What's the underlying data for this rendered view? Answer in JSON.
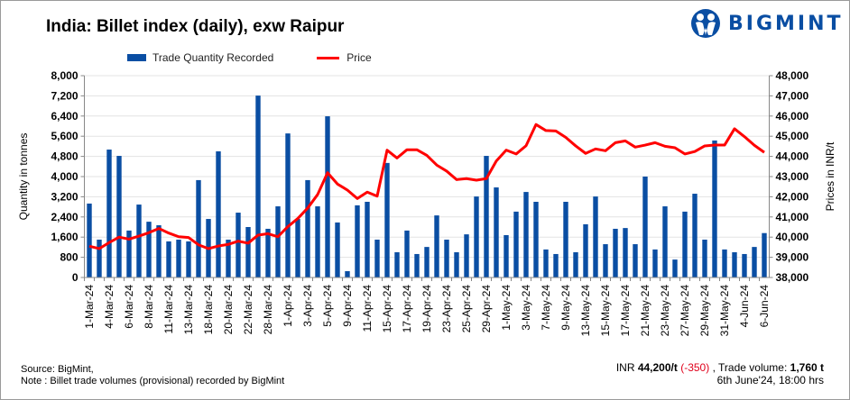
{
  "header": {
    "title": "India: Billet index (daily), exw Raipur",
    "logo_text": "BIGMINT"
  },
  "colors": {
    "bar": "#0a4ea3",
    "line": "#ff0000",
    "change_negative": "#e0001b",
    "brand": "#0a4ea3"
  },
  "chart_data": {
    "type": "bar+line",
    "title": "India: Billet index (daily), exw Raipur",
    "ylabel_left": "Quantity in tonnes",
    "ylabel_right": "Prices in INR/t",
    "ylim_left": [
      0,
      8000
    ],
    "ylim_right": [
      38000,
      48000
    ],
    "yticks_left": [
      "0",
      "800",
      "1,600",
      "2,400",
      "3,200",
      "4,000",
      "4,800",
      "5,600",
      "6,400",
      "7,200",
      "8,000"
    ],
    "yticks_right": [
      "38,000",
      "39,000",
      "40,000",
      "41,000",
      "42,000",
      "43,000",
      "44,000",
      "45,000",
      "46,000",
      "47,000",
      "48,000"
    ],
    "grid": "horizontal",
    "legend_placement": "top",
    "categories": [
      "1-Mar-24",
      "",
      "4-Mar-24",
      "",
      "6-Mar-24",
      "",
      "8-Mar-24",
      "",
      "11-Mar-24",
      "",
      "13-Mar-24",
      "",
      "18-Mar-24",
      "",
      "20-Mar-24",
      "",
      "22-Mar-24",
      "",
      "28-Mar-24",
      "",
      "1-Apr-24",
      "",
      "3-Apr-24",
      "",
      "5-Apr-24",
      "",
      "9-Apr-24",
      "",
      "11-Apr-24",
      "",
      "15-Apr-24",
      "",
      "17-Apr-24",
      "",
      "19-Apr-24",
      "",
      "23-Apr-24",
      "",
      "25-Apr-24",
      "",
      "29-Apr-24",
      "",
      "1-May-24",
      "",
      "3-May-24",
      "",
      "7-May-24",
      "",
      "9-May-24",
      "",
      "13-May-24",
      "",
      "15-May-24",
      "",
      "17-May-24",
      "",
      "21-May-24",
      "",
      "23-May-24",
      "",
      "27-May-24",
      "",
      "29-May-24",
      "",
      "31-May-24",
      "",
      "4-Jun-24",
      "",
      "6-Jun-24"
    ],
    "series": [
      {
        "name": "Trade Quantity Recorded",
        "type": "bar",
        "axis": "left",
        "values": [
          2930,
          1500,
          5070,
          4820,
          1860,
          2890,
          2210,
          2070,
          1430,
          1500,
          1430,
          3860,
          2320,
          5000,
          1500,
          2570,
          2000,
          7210,
          1930,
          2820,
          5710,
          2320,
          3860,
          2820,
          6390,
          2180,
          250,
          2860,
          3000,
          1500,
          4540,
          1000,
          1860,
          930,
          1210,
          2460,
          1500,
          1000,
          1710,
          3210,
          4820,
          3570,
          1680,
          2610,
          3390,
          3000,
          1110,
          930,
          3000,
          1000,
          2110,
          3210,
          1320,
          1930,
          1960,
          1320,
          4000,
          1110,
          2820,
          710,
          2610,
          3320,
          1500,
          5430,
          1110,
          1000,
          930,
          1210,
          1760
        ]
      },
      {
        "name": "Price",
        "type": "line",
        "axis": "right",
        "values": [
          39550,
          39430,
          39730,
          40000,
          39900,
          40050,
          40220,
          40430,
          40200,
          40020,
          39980,
          39620,
          39430,
          39560,
          39640,
          39800,
          39700,
          40100,
          40170,
          40020,
          40520,
          40920,
          41440,
          42110,
          43190,
          42630,
          42330,
          41910,
          42230,
          42030,
          44310,
          43920,
          44330,
          44330,
          44050,
          43570,
          43270,
          42850,
          42900,
          42820,
          42900,
          43770,
          44310,
          44120,
          44530,
          45580,
          45280,
          45260,
          44940,
          44520,
          44150,
          44370,
          44280,
          44680,
          44770,
          44460,
          44560,
          44680,
          44500,
          44430,
          44120,
          44240,
          44520,
          44560,
          44560,
          45370,
          44980,
          44550,
          44200
        ]
      }
    ]
  },
  "footer": {
    "source": "Source: BigMint,",
    "note": "Note : Billet trade volumes (provisional) recorded by BigMint",
    "currency": "INR",
    "price": "44,200/t",
    "change": "(-350)",
    "volume_label": ", Trade volume:",
    "volume": "1,760 t",
    "timestamp": "6th June'24,  18:00 hrs"
  }
}
